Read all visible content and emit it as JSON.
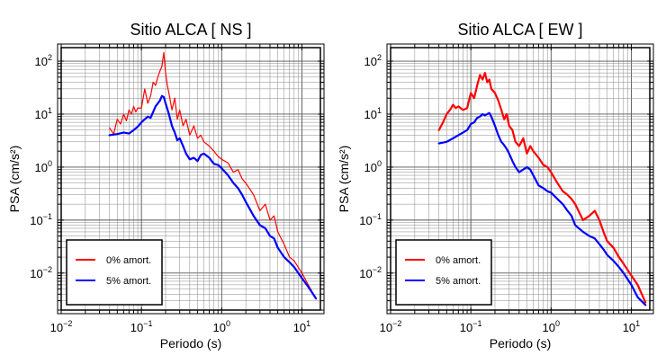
{
  "chart_data": [
    {
      "type": "line",
      "title": "Sitio ALCA [ NS ]",
      "xlabel": "Periodo (s)",
      "ylabel": "PSA (cm/s²)",
      "xscale": "log",
      "yscale": "log",
      "xlim": [
        0.01,
        17
      ],
      "ylim": [
        0.002,
        180
      ],
      "grid": true,
      "legend_position": "bottom-left",
      "xticks": [
        {
          "base": "10",
          "exp": "−2",
          "value": 0.01
        },
        {
          "base": "10",
          "exp": "−1",
          "value": 0.1
        },
        {
          "base": "10",
          "exp": "0",
          "value": 1
        },
        {
          "base": "10",
          "exp": "1",
          "value": 10
        }
      ],
      "yticks": [
        {
          "base": "10",
          "exp": "−2",
          "value": 0.01
        },
        {
          "base": "10",
          "exp": "−1",
          "value": 0.1
        },
        {
          "base": "10",
          "exp": "0",
          "value": 1
        },
        {
          "base": "10",
          "exp": "1",
          "value": 10
        },
        {
          "base": "10",
          "exp": "2",
          "value": 100
        }
      ],
      "series": [
        {
          "name": "0% amort.",
          "color": "#ff0000",
          "width": 1.2,
          "x": [
            0.04,
            0.045,
            0.05,
            0.055,
            0.06,
            0.065,
            0.07,
            0.075,
            0.08,
            0.085,
            0.09,
            0.1,
            0.11,
            0.12,
            0.13,
            0.14,
            0.15,
            0.16,
            0.17,
            0.18,
            0.19,
            0.2,
            0.21,
            0.22,
            0.24,
            0.26,
            0.28,
            0.3,
            0.33,
            0.36,
            0.4,
            0.45,
            0.5,
            0.55,
            0.6,
            0.7,
            0.8,
            0.9,
            1.0,
            1.2,
            1.4,
            1.6,
            1.8,
            2.0,
            2.5,
            3.0,
            3.5,
            4.0,
            4.5,
            5.0,
            6.0,
            7.0,
            8.0,
            10,
            12,
            15
          ],
          "y": [
            5.5,
            4.2,
            8.0,
            6.5,
            10,
            7.5,
            12,
            10,
            14,
            11,
            13,
            13,
            30,
            16,
            22,
            40,
            35,
            50,
            65,
            80,
            145,
            60,
            35,
            25,
            12,
            20,
            8,
            12,
            6,
            8,
            4,
            6,
            3.5,
            4,
            3,
            2.5,
            2,
            1.6,
            1.4,
            1.2,
            0.8,
            0.9,
            0.6,
            0.5,
            0.3,
            0.15,
            0.2,
            0.1,
            0.12,
            0.06,
            0.035,
            0.02,
            0.017,
            0.01,
            0.006,
            0.0033
          ]
        },
        {
          "name": "5% amort.",
          "color": "#0000ff",
          "width": 2.2,
          "x": [
            0.04,
            0.05,
            0.06,
            0.07,
            0.08,
            0.09,
            0.1,
            0.11,
            0.12,
            0.13,
            0.14,
            0.15,
            0.16,
            0.17,
            0.18,
            0.19,
            0.2,
            0.22,
            0.24,
            0.26,
            0.28,
            0.3,
            0.33,
            0.36,
            0.4,
            0.45,
            0.5,
            0.55,
            0.6,
            0.7,
            0.8,
            0.9,
            1.0,
            1.2,
            1.4,
            1.6,
            1.8,
            2.0,
            2.5,
            3.0,
            3.5,
            4.0,
            4.5,
            5.0,
            6.0,
            7.0,
            8.0,
            10,
            12,
            15
          ],
          "y": [
            4.0,
            4.2,
            4.5,
            4.3,
            5.0,
            5.8,
            7.0,
            8.0,
            9.0,
            8.5,
            11,
            14,
            16,
            18,
            22,
            21,
            16,
            10,
            6,
            4.5,
            3.2,
            3.5,
            2.5,
            1.8,
            1.4,
            1.5,
            1.3,
            1.7,
            1.8,
            1.5,
            1.15,
            1.1,
            0.95,
            0.7,
            0.5,
            0.4,
            0.3,
            0.22,
            0.12,
            0.08,
            0.07,
            0.05,
            0.045,
            0.03,
            0.02,
            0.016,
            0.013,
            0.008,
            0.0055,
            0.0033
          ]
        }
      ]
    },
    {
      "type": "line",
      "title": "Sitio ALCA [ EW ]",
      "xlabel": "Periodo (s)",
      "ylabel": "PSA (cm/s²)",
      "xscale": "log",
      "yscale": "log",
      "xlim": [
        0.01,
        17
      ],
      "ylim": [
        0.002,
        180
      ],
      "grid": true,
      "legend_position": "bottom-left",
      "xticks": [
        {
          "base": "10",
          "exp": "−2",
          "value": 0.01
        },
        {
          "base": "10",
          "exp": "−1",
          "value": 0.1
        },
        {
          "base": "10",
          "exp": "0",
          "value": 1
        },
        {
          "base": "10",
          "exp": "1",
          "value": 10
        }
      ],
      "yticks": [
        {
          "base": "10",
          "exp": "−2",
          "value": 0.01
        },
        {
          "base": "10",
          "exp": "−1",
          "value": 0.1
        },
        {
          "base": "10",
          "exp": "0",
          "value": 1
        },
        {
          "base": "10",
          "exp": "1",
          "value": 10
        },
        {
          "base": "10",
          "exp": "2",
          "value": 100
        }
      ],
      "series": [
        {
          "name": "0% amort.",
          "color": "#ff0000",
          "width": 2.2,
          "x": [
            0.04,
            0.045,
            0.05,
            0.055,
            0.06,
            0.065,
            0.07,
            0.08,
            0.09,
            0.1,
            0.11,
            0.12,
            0.13,
            0.14,
            0.15,
            0.16,
            0.17,
            0.18,
            0.2,
            0.22,
            0.24,
            0.26,
            0.28,
            0.3,
            0.33,
            0.36,
            0.4,
            0.45,
            0.5,
            0.55,
            0.6,
            0.7,
            0.8,
            0.9,
            1.0,
            1.2,
            1.4,
            1.6,
            1.8,
            2.0,
            2.5,
            3.0,
            3.5,
            4.0,
            4.5,
            5.0,
            6.0,
            7.0,
            8.0,
            10,
            12,
            15
          ],
          "y": [
            5.0,
            7.0,
            10,
            12,
            15,
            13,
            14,
            12,
            13,
            25,
            20,
            35,
            55,
            45,
            60,
            40,
            45,
            30,
            25,
            18,
            12,
            8,
            10,
            6,
            5,
            3,
            2.5,
            3.5,
            1.8,
            2.5,
            2,
            1.5,
            1.1,
            1.0,
            0.8,
            0.5,
            0.35,
            0.3,
            0.25,
            0.2,
            0.1,
            0.12,
            0.15,
            0.1,
            0.06,
            0.04,
            0.03,
            0.02,
            0.015,
            0.009,
            0.006,
            0.0028
          ]
        },
        {
          "name": "5% amort.",
          "color": "#0000ff",
          "width": 2.2,
          "x": [
            0.04,
            0.05,
            0.06,
            0.07,
            0.08,
            0.09,
            0.1,
            0.11,
            0.12,
            0.13,
            0.14,
            0.15,
            0.16,
            0.17,
            0.18,
            0.2,
            0.22,
            0.24,
            0.26,
            0.28,
            0.3,
            0.33,
            0.36,
            0.4,
            0.45,
            0.5,
            0.55,
            0.6,
            0.7,
            0.8,
            0.9,
            1.0,
            1.2,
            1.4,
            1.6,
            1.8,
            2.0,
            2.5,
            3.0,
            3.5,
            4.0,
            4.5,
            5.0,
            6.0,
            7.0,
            8.0,
            10,
            12,
            15
          ],
          "y": [
            2.8,
            3.0,
            3.5,
            4.0,
            4.5,
            5.0,
            6.5,
            7.0,
            8.5,
            9.0,
            10,
            9.5,
            10,
            10.5,
            9.0,
            6.0,
            4.0,
            3.0,
            2.6,
            2.2,
            1.8,
            1.3,
            1.0,
            0.8,
            0.9,
            1.0,
            0.9,
            0.7,
            0.45,
            0.4,
            0.35,
            0.33,
            0.25,
            0.2,
            0.15,
            0.12,
            0.08,
            0.06,
            0.05,
            0.045,
            0.035,
            0.028,
            0.022,
            0.017,
            0.013,
            0.01,
            0.006,
            0.0035,
            0.0025
          ]
        }
      ]
    }
  ]
}
